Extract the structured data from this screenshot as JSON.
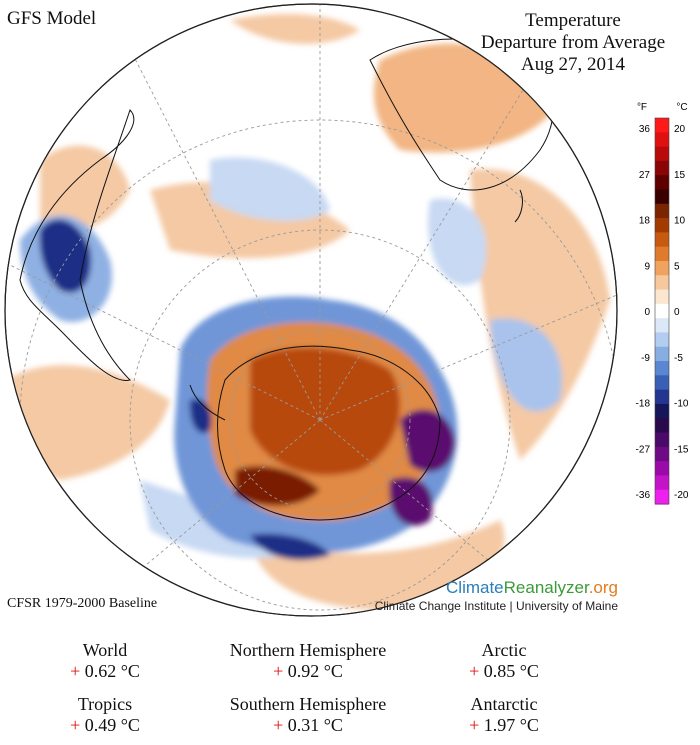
{
  "model_label": "GFS Model",
  "title": {
    "line1": "Temperature",
    "line2": "Departure from Average",
    "date": "Aug 27, 2014"
  },
  "scale": {
    "f_unit": "°F",
    "c_unit": "°C",
    "f_ticks": [
      "36",
      "27",
      "18",
      "9",
      "0",
      "-9",
      "-18",
      "-27",
      "-36"
    ],
    "c_ticks": [
      "20",
      "15",
      "10",
      "5",
      "0",
      "-5",
      "-10",
      "-15",
      "-20"
    ],
    "colors": [
      "#ff1a1a",
      "#e01010",
      "#b80a0a",
      "#8a0505",
      "#5e0000",
      "#3a0000",
      "#7a2400",
      "#a33a00",
      "#c85a10",
      "#e07a2c",
      "#f0a25f",
      "#f7c89b",
      "#fbe6cf",
      "#ffffff",
      "#dbe8f8",
      "#b3cdf0",
      "#86aee3",
      "#5b86d1",
      "#3a5fb6",
      "#24368f",
      "#15175a",
      "#2a0a4a",
      "#4a0a6a",
      "#6e0a85",
      "#9a0aa8",
      "#c414c8",
      "#ee20ee"
    ]
  },
  "baseline": "CFSR 1979-2000 Baseline",
  "brand": {
    "climate": "Climate",
    "reanalyzer": "Reanalyzer",
    "org": ".org",
    "sub": "Climate Change Institute | University of Maine"
  },
  "stats": [
    {
      "region": "World",
      "sign": "+",
      "value": "0.62 °C"
    },
    {
      "region": "Northern Hemisphere",
      "sign": "+",
      "value": "0.92 °C"
    },
    {
      "region": "Arctic",
      "sign": "+",
      "value": "0.85 °C"
    },
    {
      "region": "Tropics",
      "sign": "+",
      "value": "0.49 °C"
    },
    {
      "region": "Southern Hemisphere",
      "sign": "+",
      "value": "0.31 °C"
    },
    {
      "region": "Antarctic",
      "sign": "+",
      "value": "1.97 °C"
    }
  ],
  "anomaly_palette": {
    "warm_light": "#f4c9a4",
    "warm_mid": "#e08a45",
    "warm_strong": "#b84a10",
    "warm_extreme": "#7a1a05",
    "cool_light": "#c7d9f3",
    "cool_mid": "#6f96d8",
    "cool_strong": "#1f2f86",
    "cool_extreme": "#5a0a6e"
  }
}
